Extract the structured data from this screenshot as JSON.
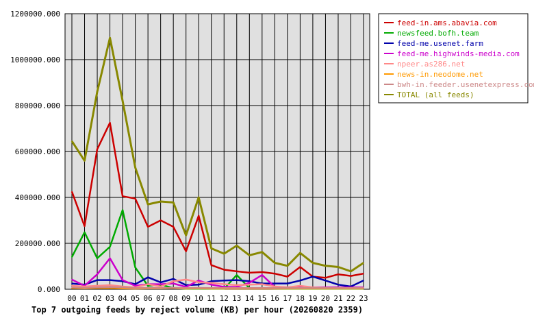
{
  "chart_data": {
    "type": "line",
    "title": "Top 7 outgoing feeds by reject volume (KB) per hour (20260820 2359)",
    "xlabel": "",
    "ylabel": "",
    "categories": [
      "00",
      "01",
      "02",
      "03",
      "04",
      "05",
      "06",
      "07",
      "08",
      "09",
      "10",
      "11",
      "12",
      "13",
      "14",
      "15",
      "16",
      "17",
      "18",
      "19",
      "20",
      "21",
      "22",
      "23"
    ],
    "y_ticks": [
      "0.000",
      "200000.000",
      "400000.000",
      "600000.000",
      "800000.000",
      "1000000.000",
      "1200000.000"
    ],
    "ylim": [
      0,
      1200000
    ],
    "grid": true,
    "legend_position": "top-right",
    "series": [
      {
        "name": "feed-in.ams.abavia.com",
        "color": "#cc0000",
        "values": [
          425000,
          275000,
          610000,
          725000,
          405000,
          395000,
          272000,
          300000,
          272000,
          165000,
          320000,
          105000,
          85000,
          78000,
          72000,
          75000,
          68000,
          55000,
          97000,
          55000,
          50000,
          65000,
          58000,
          68000
        ]
      },
      {
        "name": "newsfeed.bofh.team",
        "color": "#00aa00",
        "values": [
          140000,
          248000,
          135000,
          185000,
          345000,
          95000,
          15000,
          20000,
          5000,
          2000,
          2000,
          2000,
          2000,
          62000,
          5000,
          5000,
          3000,
          2000,
          2000,
          2000,
          2000,
          2000,
          2000,
          2000
        ]
      },
      {
        "name": "feed-me.usenet.farm",
        "color": "#0000aa",
        "values": [
          25000,
          20000,
          40000,
          40000,
          35000,
          22000,
          52000,
          30000,
          45000,
          18000,
          20000,
          35000,
          38000,
          40000,
          35000,
          25000,
          25000,
          25000,
          38000,
          55000,
          38000,
          20000,
          12000,
          38000
        ]
      },
      {
        "name": "feed-me.highwinds-media.com",
        "color": "#cc00cc",
        "values": [
          42000,
          15000,
          65000,
          135000,
          40000,
          15000,
          22000,
          22000,
          25000,
          10000,
          38000,
          20000,
          10000,
          10000,
          28000,
          62000,
          10000,
          8000,
          8000,
          8000,
          8000,
          8000,
          8000,
          8000
        ]
      },
      {
        "name": "npeer.as286.net",
        "color": "#ff8888",
        "values": [
          15000,
          12000,
          15000,
          18000,
          12000,
          8000,
          22000,
          12000,
          35000,
          42000,
          30000,
          28000,
          22000,
          18000,
          20000,
          22000,
          12000,
          8000,
          15000,
          8000,
          6000,
          5000,
          5000,
          6000
        ]
      },
      {
        "name": "news-in.neodome.net",
        "color": "#ff9900",
        "values": [
          5000,
          4000,
          5000,
          6000,
          4000,
          3000,
          4000,
          4000,
          5000,
          3000,
          4000,
          3000,
          3000,
          3000,
          3000,
          3000,
          3000,
          3000,
          3000,
          3000,
          3000,
          3000,
          3000,
          3000
        ]
      },
      {
        "name": "bwh-in.feeder.usenetexpress.com",
        "color": "#cc8888",
        "values": [
          8000,
          6000,
          8000,
          10000,
          8000,
          5000,
          6000,
          5000,
          6000,
          5000,
          6000,
          5000,
          5000,
          5000,
          5000,
          5000,
          5000,
          5000,
          5000,
          5000,
          5000,
          5000,
          5000,
          5000
        ]
      },
      {
        "name": "TOTAL (all feeds)",
        "color": "#888800",
        "values": [
          645000,
          560000,
          860000,
          1095000,
          820000,
          530000,
          370000,
          382000,
          378000,
          235000,
          400000,
          178000,
          155000,
          190000,
          148000,
          162000,
          115000,
          102000,
          158000,
          115000,
          102000,
          97000,
          78000,
          115000
        ]
      }
    ]
  }
}
